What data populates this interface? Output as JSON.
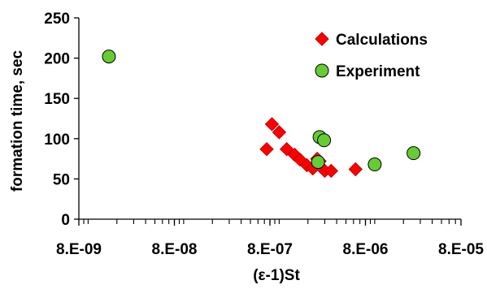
{
  "chart_data": {
    "type": "scatter",
    "title": "",
    "xlabel": "(ε-1)St",
    "ylabel": "formation time, sec",
    "xscale": "log",
    "xlim": [
      8e-09,
      8e-05
    ],
    "ylim": [
      0,
      250
    ],
    "x_tick_values": [
      8e-09,
      8e-08,
      8e-07,
      8e-06,
      8e-05
    ],
    "x_tick_labels": [
      "8.E-09",
      "8.E-08",
      "8.E-07",
      "8.E-06",
      "8.E-05"
    ],
    "y_tick_values": [
      0,
      50,
      100,
      150,
      200,
      250
    ],
    "y_tick_labels": [
      "0",
      "50",
      "100",
      "150",
      "200",
      "250"
    ],
    "grid": false,
    "legend_position": "top-right",
    "series": [
      {
        "name": "Calculations",
        "marker": "diamond",
        "color": "#ff0000",
        "edge_color": "#c00000",
        "x": [
          7.4e-07,
          8.4e-07,
          1e-06,
          1.2e-06,
          1.45e-06,
          1.65e-06,
          1.95e-06,
          2.25e-06,
          2.5e-06,
          2.65e-06,
          3e-06,
          3.5e-06,
          6.3e-06
        ],
        "y": [
          87,
          118,
          108,
          87,
          80,
          74,
          67,
          63,
          75,
          72,
          60,
          60,
          62
        ]
      },
      {
        "name": "Experiment",
        "marker": "circle",
        "color": "#66cc33",
        "edge_color": "#000000",
        "x": [
          1.65e-08,
          2.55e-06,
          2.65e-06,
          2.95e-06,
          1e-05,
          2.55e-05
        ],
        "y": [
          202,
          71,
          102,
          98,
          68,
          82
        ]
      }
    ]
  }
}
